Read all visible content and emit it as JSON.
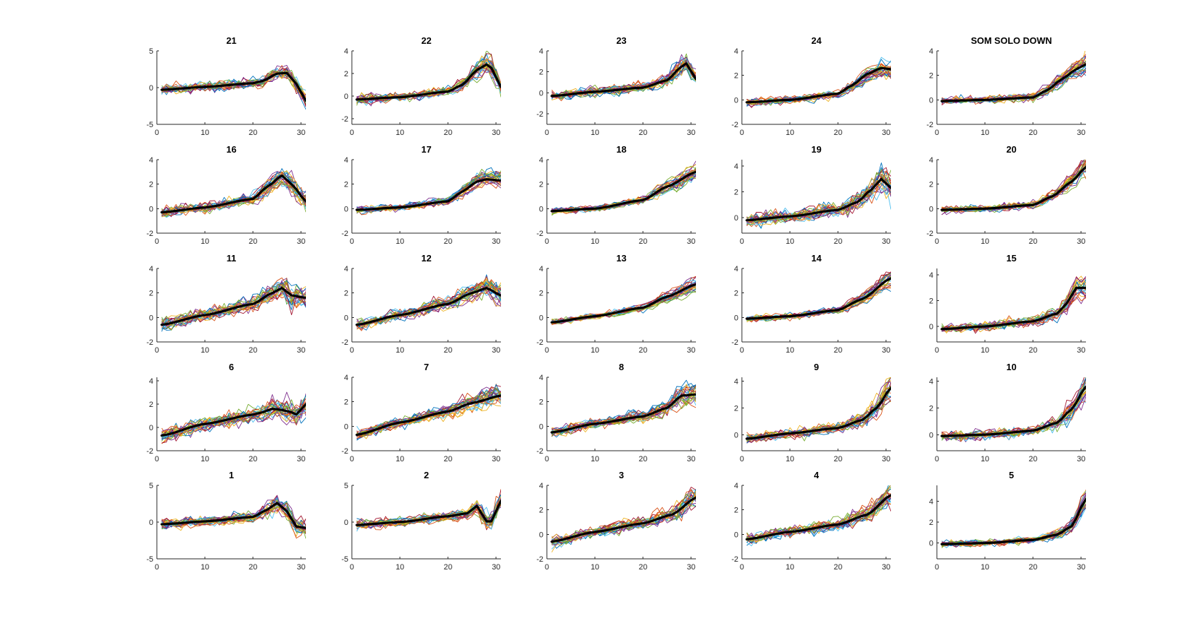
{
  "figure": {
    "line_colors": [
      "#0072BD",
      "#D95319",
      "#EDB120",
      "#7E2F8E",
      "#77AC30",
      "#4DBEEE",
      "#A2142F"
    ],
    "mean_color": "#000000",
    "traces_per_panel": 26,
    "x_points": 31
  },
  "chart_data": [
    {
      "type": "line",
      "title": "21",
      "xlim": [
        0,
        31
      ],
      "xticks": [
        0,
        10,
        20,
        30
      ],
      "ylim": [
        -5,
        5
      ],
      "yticks": [
        -5,
        0,
        5
      ],
      "noise": 0.55,
      "mean": [
        [
          1,
          -0.3
        ],
        [
          10,
          0.1
        ],
        [
          20,
          0.6
        ],
        [
          22,
          0.9
        ],
        [
          25,
          1.9
        ],
        [
          27,
          2.0
        ],
        [
          29,
          0.5
        ],
        [
          31,
          -1.8
        ]
      ]
    },
    {
      "type": "line",
      "title": "22",
      "xlim": [
        0,
        31
      ],
      "xticks": [
        0,
        10,
        20,
        30
      ],
      "ylim": [
        -2.5,
        4
      ],
      "yticks": [
        -2,
        0,
        2,
        4
      ],
      "noise": 0.35,
      "mean": [
        [
          1,
          -0.3
        ],
        [
          10,
          -0.1
        ],
        [
          20,
          0.4
        ],
        [
          23,
          1.0
        ],
        [
          26,
          2.3
        ],
        [
          28,
          2.8
        ],
        [
          29,
          2.5
        ],
        [
          31,
          0.8
        ]
      ]
    },
    {
      "type": "line",
      "title": "23",
      "xlim": [
        0,
        31
      ],
      "xticks": [
        0,
        10,
        20,
        30
      ],
      "ylim": [
        -3,
        4
      ],
      "yticks": [
        -2,
        0,
        2,
        4
      ],
      "noise": 0.4,
      "mean": [
        [
          1,
          -0.3
        ],
        [
          10,
          0.1
        ],
        [
          20,
          0.5
        ],
        [
          25,
          1.2
        ],
        [
          28,
          2.5
        ],
        [
          29,
          2.8
        ],
        [
          31,
          1.3
        ]
      ]
    },
    {
      "type": "line",
      "title": "24",
      "xlim": [
        0,
        31
      ],
      "xticks": [
        0,
        10,
        20,
        30
      ],
      "ylim": [
        -2,
        4
      ],
      "yticks": [
        -2,
        0,
        2,
        4
      ],
      "noise": 0.25,
      "mean": [
        [
          1,
          -0.2
        ],
        [
          10,
          0.0
        ],
        [
          20,
          0.5
        ],
        [
          23,
          1.2
        ],
        [
          26,
          2.1
        ],
        [
          29,
          2.6
        ],
        [
          31,
          2.5
        ]
      ]
    },
    {
      "type": "line",
      "title": "SOM SOLO DOWN",
      "xlim": [
        0,
        31
      ],
      "xticks": [
        0,
        10,
        20,
        30
      ],
      "ylim": [
        -2,
        4
      ],
      "yticks": [
        -2,
        0,
        2,
        4
      ],
      "noise": 0.25,
      "mean": [
        [
          1,
          -0.1
        ],
        [
          10,
          0.0
        ],
        [
          20,
          0.2
        ],
        [
          23,
          0.8
        ],
        [
          26,
          1.7
        ],
        [
          29,
          2.5
        ],
        [
          31,
          2.9
        ]
      ]
    },
    {
      "type": "line",
      "title": "16",
      "xlim": [
        0,
        31
      ],
      "xticks": [
        0,
        10,
        20,
        30
      ],
      "ylim": [
        -2,
        4
      ],
      "yticks": [
        -2,
        0,
        2,
        4
      ],
      "noise": 0.35,
      "mean": [
        [
          1,
          -0.3
        ],
        [
          10,
          0.1
        ],
        [
          20,
          0.8
        ],
        [
          23,
          1.8
        ],
        [
          26,
          2.7
        ],
        [
          28,
          2.0
        ],
        [
          31,
          0.6
        ]
      ]
    },
    {
      "type": "line",
      "title": "17",
      "xlim": [
        0,
        31
      ],
      "xticks": [
        0,
        10,
        20,
        30
      ],
      "ylim": [
        -2,
        4
      ],
      "yticks": [
        -2,
        0,
        2,
        4
      ],
      "noise": 0.25,
      "mean": [
        [
          1,
          -0.1
        ],
        [
          10,
          0.1
        ],
        [
          20,
          0.6
        ],
        [
          23,
          1.4
        ],
        [
          26,
          2.2
        ],
        [
          28,
          2.4
        ],
        [
          31,
          2.3
        ]
      ]
    },
    {
      "type": "line",
      "title": "18",
      "xlim": [
        0,
        31
      ],
      "xticks": [
        0,
        10,
        20,
        30
      ],
      "ylim": [
        -2,
        4
      ],
      "yticks": [
        -2,
        0,
        2,
        4
      ],
      "noise": 0.22,
      "mean": [
        [
          1,
          -0.2
        ],
        [
          10,
          0.0
        ],
        [
          20,
          0.7
        ],
        [
          25,
          1.8
        ],
        [
          31,
          3.0
        ]
      ]
    },
    {
      "type": "line",
      "title": "19",
      "xlim": [
        0,
        31
      ],
      "xticks": [
        0,
        10,
        20,
        30
      ],
      "ylim": [
        -1.2,
        4.5
      ],
      "yticks": [
        0,
        2,
        4
      ],
      "noise": 0.45,
      "mean": [
        [
          1,
          -0.2
        ],
        [
          10,
          0.1
        ],
        [
          20,
          0.6
        ],
        [
          24,
          1.2
        ],
        [
          27,
          2.2
        ],
        [
          29,
          3.0
        ],
        [
          31,
          2.3
        ]
      ]
    },
    {
      "type": "line",
      "title": "20",
      "xlim": [
        0,
        31
      ],
      "xticks": [
        0,
        10,
        20,
        30
      ],
      "ylim": [
        -2,
        4
      ],
      "yticks": [
        -2,
        0,
        2,
        4
      ],
      "noise": 0.25,
      "mean": [
        [
          1,
          -0.1
        ],
        [
          10,
          0.0
        ],
        [
          20,
          0.3
        ],
        [
          24,
          1.0
        ],
        [
          28,
          2.2
        ],
        [
          31,
          3.4
        ]
      ]
    },
    {
      "type": "line",
      "title": "11",
      "xlim": [
        0,
        31
      ],
      "xticks": [
        0,
        10,
        20,
        30
      ],
      "ylim": [
        -2,
        4
      ],
      "yticks": [
        -2,
        0,
        2,
        4
      ],
      "noise": 0.45,
      "mean": [
        [
          1,
          -0.6
        ],
        [
          10,
          0.2
        ],
        [
          20,
          1.1
        ],
        [
          24,
          2.0
        ],
        [
          26,
          2.4
        ],
        [
          28,
          1.8
        ],
        [
          31,
          1.6
        ]
      ]
    },
    {
      "type": "line",
      "title": "12",
      "xlim": [
        0,
        31
      ],
      "xticks": [
        0,
        10,
        20,
        30
      ],
      "ylim": [
        -2,
        4
      ],
      "yticks": [
        -2,
        0,
        2,
        4
      ],
      "noise": 0.4,
      "mean": [
        [
          1,
          -0.6
        ],
        [
          10,
          0.2
        ],
        [
          20,
          1.1
        ],
        [
          25,
          2.0
        ],
        [
          28,
          2.4
        ],
        [
          31,
          1.8
        ]
      ]
    },
    {
      "type": "line",
      "title": "13",
      "xlim": [
        0,
        31
      ],
      "xticks": [
        0,
        10,
        20,
        30
      ],
      "ylim": [
        -2,
        4
      ],
      "yticks": [
        -2,
        0,
        2,
        4
      ],
      "noise": 0.2,
      "mean": [
        [
          1,
          -0.4
        ],
        [
          10,
          0.1
        ],
        [
          20,
          0.8
        ],
        [
          25,
          1.7
        ],
        [
          31,
          2.7
        ]
      ]
    },
    {
      "type": "line",
      "title": "14",
      "xlim": [
        0,
        31
      ],
      "xticks": [
        0,
        10,
        20,
        30
      ],
      "ylim": [
        -2,
        4
      ],
      "yticks": [
        -2,
        0,
        2,
        4
      ],
      "noise": 0.2,
      "mean": [
        [
          1,
          -0.1
        ],
        [
          10,
          0.1
        ],
        [
          20,
          0.6
        ],
        [
          25,
          1.5
        ],
        [
          31,
          3.2
        ]
      ]
    },
    {
      "type": "line",
      "title": "15",
      "xlim": [
        0,
        31
      ],
      "xticks": [
        0,
        10,
        20,
        30
      ],
      "ylim": [
        -1.2,
        4.5
      ],
      "yticks": [
        0,
        2,
        4
      ],
      "noise": 0.3,
      "mean": [
        [
          1,
          -0.2
        ],
        [
          10,
          0.0
        ],
        [
          20,
          0.4
        ],
        [
          25,
          1.0
        ],
        [
          27,
          1.8
        ],
        [
          29,
          3.0
        ],
        [
          31,
          3.0
        ]
      ]
    },
    {
      "type": "line",
      "title": "6",
      "xlim": [
        0,
        31
      ],
      "xticks": [
        0,
        10,
        20,
        30
      ],
      "ylim": [
        -2,
        4.3
      ],
      "yticks": [
        -2,
        0,
        2,
        4
      ],
      "noise": 0.5,
      "mean": [
        [
          1,
          -0.7
        ],
        [
          10,
          0.3
        ],
        [
          20,
          1.1
        ],
        [
          22,
          1.3
        ],
        [
          24,
          1.6
        ],
        [
          26,
          1.5
        ],
        [
          28,
          1.3
        ],
        [
          29,
          1.1
        ],
        [
          31,
          2.0
        ]
      ]
    },
    {
      "type": "line",
      "title": "7",
      "xlim": [
        0,
        31
      ],
      "xticks": [
        0,
        10,
        20,
        30
      ],
      "ylim": [
        -2,
        4
      ],
      "yticks": [
        -2,
        0,
        2,
        4
      ],
      "noise": 0.35,
      "mean": [
        [
          1,
          -0.7
        ],
        [
          10,
          0.3
        ],
        [
          20,
          1.2
        ],
        [
          25,
          1.9
        ],
        [
          31,
          2.5
        ]
      ]
    },
    {
      "type": "line",
      "title": "8",
      "xlim": [
        0,
        31
      ],
      "xticks": [
        0,
        10,
        20,
        30
      ],
      "ylim": [
        -2,
        4
      ],
      "yticks": [
        -2,
        0,
        2,
        4
      ],
      "noise": 0.35,
      "mean": [
        [
          1,
          -0.5
        ],
        [
          10,
          0.2
        ],
        [
          20,
          0.8
        ],
        [
          25,
          1.5
        ],
        [
          28,
          2.5
        ],
        [
          31,
          2.6
        ]
      ]
    },
    {
      "type": "line",
      "title": "9",
      "xlim": [
        0,
        31
      ],
      "xticks": [
        0,
        10,
        20,
        30
      ],
      "ylim": [
        -1.2,
        4.3
      ],
      "yticks": [
        0,
        2,
        4
      ],
      "noise": 0.3,
      "mean": [
        [
          1,
          -0.3
        ],
        [
          10,
          0.1
        ],
        [
          20,
          0.5
        ],
        [
          25,
          1.1
        ],
        [
          28,
          2.0
        ],
        [
          31,
          3.5
        ]
      ]
    },
    {
      "type": "line",
      "title": "10",
      "xlim": [
        0,
        31
      ],
      "xticks": [
        0,
        10,
        20,
        30
      ],
      "ylim": [
        -1.2,
        4.3
      ],
      "yticks": [
        0,
        2,
        4
      ],
      "noise": 0.3,
      "mean": [
        [
          1,
          -0.1
        ],
        [
          10,
          0.0
        ],
        [
          20,
          0.3
        ],
        [
          25,
          0.9
        ],
        [
          28,
          1.9
        ],
        [
          31,
          3.6
        ]
      ]
    },
    {
      "type": "line",
      "title": "1",
      "xlim": [
        0,
        31
      ],
      "xticks": [
        0,
        10,
        20,
        30
      ],
      "ylim": [
        -5,
        5
      ],
      "yticks": [
        -5,
        0,
        5
      ],
      "noise": 0.6,
      "mean": [
        [
          1,
          -0.3
        ],
        [
          10,
          0.1
        ],
        [
          20,
          0.7
        ],
        [
          23,
          1.7
        ],
        [
          25,
          2.6
        ],
        [
          27,
          1.5
        ],
        [
          29,
          -0.6
        ],
        [
          31,
          -0.8
        ]
      ]
    },
    {
      "type": "line",
      "title": "2",
      "xlim": [
        0,
        31
      ],
      "xticks": [
        0,
        10,
        20,
        30
      ],
      "ylim": [
        -5,
        5
      ],
      "yticks": [
        -5,
        0,
        5
      ],
      "noise": 0.55,
      "mean": [
        [
          1,
          -0.4
        ],
        [
          10,
          0.0
        ],
        [
          20,
          0.8
        ],
        [
          24,
          1.2
        ],
        [
          26,
          2.2
        ],
        [
          28,
          0.1
        ],
        [
          29,
          0.1
        ],
        [
          31,
          2.9
        ]
      ]
    },
    {
      "type": "line",
      "title": "3",
      "xlim": [
        0,
        31
      ],
      "xticks": [
        0,
        10,
        20,
        30
      ],
      "ylim": [
        -2,
        4
      ],
      "yticks": [
        -2,
        0,
        2,
        4
      ],
      "noise": 0.4,
      "mean": [
        [
          1,
          -0.6
        ],
        [
          10,
          0.2
        ],
        [
          20,
          0.9
        ],
        [
          26,
          1.6
        ],
        [
          31,
          3.0
        ]
      ]
    },
    {
      "type": "line",
      "title": "4",
      "xlim": [
        0,
        31
      ],
      "xticks": [
        0,
        10,
        20,
        30
      ],
      "ylim": [
        -2,
        4
      ],
      "yticks": [
        -2,
        0,
        2,
        4
      ],
      "noise": 0.35,
      "mean": [
        [
          1,
          -0.4
        ],
        [
          10,
          0.2
        ],
        [
          20,
          0.8
        ],
        [
          26,
          1.6
        ],
        [
          31,
          3.2
        ]
      ]
    },
    {
      "type": "line",
      "title": "5",
      "xlim": [
        0,
        31
      ],
      "xticks": [
        0,
        10,
        20,
        30
      ],
      "ylim": [
        -1.5,
        5.5
      ],
      "yticks": [
        0,
        2,
        4
      ],
      "noise": 0.25,
      "mean": [
        [
          1,
          -0.1
        ],
        [
          10,
          0.0
        ],
        [
          20,
          0.3
        ],
        [
          25,
          0.8
        ],
        [
          28,
          1.6
        ],
        [
          31,
          4.2
        ]
      ]
    }
  ]
}
